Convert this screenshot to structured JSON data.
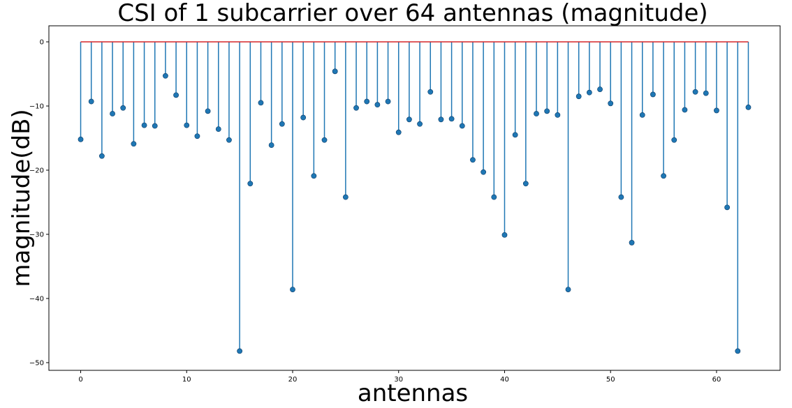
{
  "chart_data": {
    "type": "stem",
    "title": "CSI of 1 subcarrier over 64 antennas (magnitude)",
    "xlabel": "antennas",
    "ylabel": "magnitude(dB)",
    "xlim": [
      -3,
      66
    ],
    "ylim": [
      -51.2,
      2.5
    ],
    "xticks": [
      0,
      10,
      20,
      30,
      40,
      50,
      60
    ],
    "yticks": [
      0,
      -10,
      -20,
      -30,
      -40,
      -50
    ],
    "baseline": 0,
    "grid": false,
    "colors": {
      "stem": "#1f77b4",
      "marker": "#1f77b4",
      "baseline": "#d62728"
    },
    "x": [
      0,
      1,
      2,
      3,
      4,
      5,
      6,
      7,
      8,
      9,
      10,
      11,
      12,
      13,
      14,
      15,
      16,
      17,
      18,
      19,
      20,
      21,
      22,
      23,
      24,
      25,
      26,
      27,
      28,
      29,
      30,
      31,
      32,
      33,
      34,
      35,
      36,
      37,
      38,
      39,
      40,
      41,
      42,
      43,
      44,
      45,
      46,
      47,
      48,
      49,
      50,
      51,
      52,
      53,
      54,
      55,
      56,
      57,
      58,
      59,
      60,
      61,
      62,
      63
    ],
    "values": [
      -15.2,
      -9.3,
      -17.8,
      -11.2,
      -10.3,
      -15.9,
      -13.0,
      -13.1,
      -5.3,
      -8.3,
      -13.0,
      -14.7,
      -10.8,
      -13.6,
      -15.3,
      -48.2,
      -22.1,
      -9.5,
      -16.1,
      -12.8,
      -38.6,
      -11.8,
      -20.9,
      -15.3,
      -4.6,
      -24.2,
      -10.3,
      -9.3,
      -9.8,
      -9.3,
      -14.1,
      -12.1,
      -12.8,
      -7.8,
      -12.1,
      -12.0,
      -13.1,
      -18.4,
      -20.3,
      -24.2,
      -30.1,
      -14.5,
      -22.1,
      -11.2,
      -10.8,
      -11.4,
      -38.6,
      -8.5,
      -7.9,
      -7.4,
      -9.6,
      -24.2,
      -31.3,
      -11.4,
      -8.2,
      -20.9,
      -15.3,
      -10.6,
      -7.8,
      -8.0,
      -10.7,
      -25.8,
      -48.2,
      -10.2
    ]
  }
}
